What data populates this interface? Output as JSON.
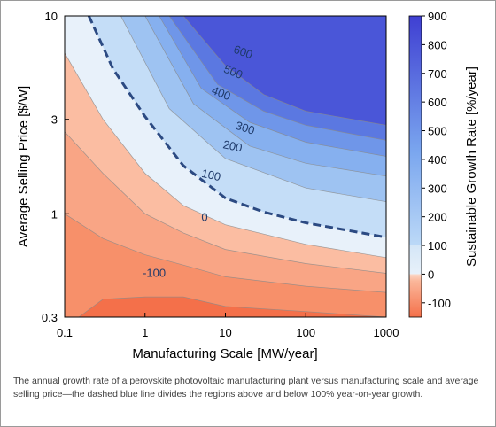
{
  "chart_data": {
    "type": "heatmap",
    "title": "",
    "xlabel": "Manufacturing Scale [MW/year]",
    "ylabel": "Average Selling Price [$/W]",
    "x_scale": "log",
    "y_scale": "log",
    "xlim": [
      0.1,
      1000
    ],
    "ylim": [
      0.3,
      10
    ],
    "x_ticks": [
      "0.1",
      "1",
      "10",
      "100",
      "1000"
    ],
    "y_ticks": [
      "0.3",
      "1",
      "3",
      "10"
    ],
    "colorbar": {
      "label": "Sustainable Growth Rate [%/year]",
      "range": [
        -150,
        900
      ],
      "ticks": [
        "900",
        "800",
        "700",
        "600",
        "500",
        "400",
        "300",
        "200",
        "100",
        "0",
        "-100"
      ],
      "low_color": "#f4704a",
      "zero_color": "#e8f1fa",
      "high_color": "#3f3fd2"
    },
    "contour_labels": [
      "600",
      "500",
      "400",
      "300",
      "200",
      "100",
      "0",
      "-100"
    ],
    "highlight_contour": {
      "level": 100,
      "style": "dashed",
      "color": "#2c4a82",
      "points": [
        {
          "x": 0.2,
          "y": 10
        },
        {
          "x": 0.4,
          "y": 5.4
        },
        {
          "x": 1,
          "y": 3.1
        },
        {
          "x": 3,
          "y": 1.75
        },
        {
          "x": 10,
          "y": 1.2
        },
        {
          "x": 30,
          "y": 1.02
        },
        {
          "x": 100,
          "y": 0.9
        },
        {
          "x": 1000,
          "y": 0.76
        }
      ]
    },
    "contours": [
      {
        "level": 600,
        "points": [
          {
            "x": 3,
            "y": 10
          },
          {
            "x": 10,
            "y": 5.6
          },
          {
            "x": 30,
            "y": 4.0
          },
          {
            "x": 100,
            "y": 3.3
          },
          {
            "x": 1000,
            "y": 2.8
          }
        ]
      },
      {
        "level": 500,
        "points": [
          {
            "x": 2,
            "y": 10
          },
          {
            "x": 8,
            "y": 4.5
          },
          {
            "x": 30,
            "y": 3.3
          },
          {
            "x": 100,
            "y": 2.8
          },
          {
            "x": 1000,
            "y": 2.35
          }
        ]
      },
      {
        "level": 400,
        "points": [
          {
            "x": 1.5,
            "y": 10
          },
          {
            "x": 5,
            "y": 4.3
          },
          {
            "x": 20,
            "y": 2.9
          },
          {
            "x": 100,
            "y": 2.3
          },
          {
            "x": 1000,
            "y": 1.95
          }
        ]
      },
      {
        "level": 300,
        "points": [
          {
            "x": 1,
            "y": 10
          },
          {
            "x": 4,
            "y": 3.6
          },
          {
            "x": 20,
            "y": 2.2
          },
          {
            "x": 100,
            "y": 1.8
          },
          {
            "x": 1000,
            "y": 1.55
          }
        ]
      },
      {
        "level": 200,
        "points": [
          {
            "x": 0.5,
            "y": 10
          },
          {
            "x": 2,
            "y": 3.4
          },
          {
            "x": 10,
            "y": 1.9
          },
          {
            "x": 100,
            "y": 1.35
          },
          {
            "x": 1000,
            "y": 1.15
          }
        ]
      },
      {
        "level": 0,
        "points": [
          {
            "x": 0.1,
            "y": 6.5
          },
          {
            "x": 0.3,
            "y": 3.0
          },
          {
            "x": 1,
            "y": 1.6
          },
          {
            "x": 3,
            "y": 1.1
          },
          {
            "x": 10,
            "y": 0.88
          },
          {
            "x": 100,
            "y": 0.7
          },
          {
            "x": 1000,
            "y": 0.6
          }
        ]
      },
      {
        "level": -50,
        "points": [
          {
            "x": 0.1,
            "y": 2.6
          },
          {
            "x": 0.3,
            "y": 1.6
          },
          {
            "x": 1,
            "y": 1.0
          },
          {
            "x": 3,
            "y": 0.8
          },
          {
            "x": 10,
            "y": 0.66
          },
          {
            "x": 100,
            "y": 0.56
          },
          {
            "x": 1000,
            "y": 0.5
          }
        ]
      },
      {
        "level": -100,
        "points": [
          {
            "x": 0.1,
            "y": 1.0
          },
          {
            "x": 0.3,
            "y": 0.75
          },
          {
            "x": 1,
            "y": 0.62
          },
          {
            "x": 3,
            "y": 0.55
          },
          {
            "x": 10,
            "y": 0.48
          },
          {
            "x": 100,
            "y": 0.43
          },
          {
            "x": 1000,
            "y": 0.4
          }
        ]
      },
      {
        "level": -125,
        "points": [
          {
            "x": 0.15,
            "y": 0.3
          },
          {
            "x": 0.3,
            "y": 0.37
          },
          {
            "x": 1,
            "y": 0.38
          },
          {
            "x": 3,
            "y": 0.38
          },
          {
            "x": 10,
            "y": 0.34
          },
          {
            "x": 100,
            "y": 0.32
          },
          {
            "x": 1000,
            "y": 0.3
          }
        ]
      }
    ]
  },
  "caption": "The annual growth rate of a perovskite photovoltaic manufacturing plant versus manufacturing scale and average selling price—the dashed blue line divides the regions above and below 100% year-on-year growth."
}
